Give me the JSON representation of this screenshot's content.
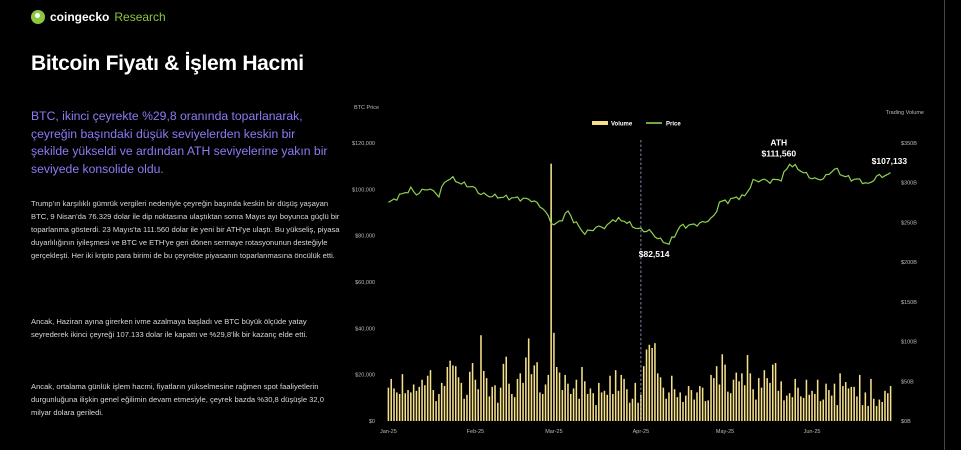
{
  "brand": {
    "name": "coingecko",
    "suffix": "Research"
  },
  "title": "Bitcoin Fiyatı & İşlem Hacmi",
  "lead": "BTC, ikinci çeyrekte %29,8 oranında toparlanarak, çeyreğin başındaki düşük seviyelerden keskin bir şekilde yükseldi ve ardından ATH seviyelerine yakın bir seviyede konsolide oldu.",
  "paragraphs": [
    "Trump'ın karşılıklı gümrük vergileri nedeniyle çeyreğin başında keskin bir düşüş yaşayan BTC, 9 Nisan'da 76.329 dolar ile dip noktasına ulaştıktan sonra Mayıs ayı boyunca güçlü bir toparlanma gösterdi. 23 Mayıs'ta 111.560 dolar ile yeni bir ATH'ye ulaştı. Bu yükseliş, piyasa duyarlılığının iyileşmesi ve BTC ve ETH'ye geri dönen sermaye rotasyonunun desteğiyle gerçekleşti. Her iki kripto para birimi de bu çeyrekte piyasanın toparlanmasına öncülük etti.",
    "Ancak, Haziran ayına girerken ivme azalmaya başladı ve BTC büyük ölçüde yatay seyrederek ikinci çeyreği 107.133 dolar ile kapattı ve %29,8'lik bir kazanç elde etti.",
    "Ancak, ortalama günlük işlem hacmi, fiyatların yükselmesine rağmen spot faaliyetlerin durgunluğuna ilişkin genel eğilimin devam etmesiyle, çeyrek bazda %30,8 düşüşle 32,0 milyar dolara geriledi."
  ],
  "chart_data": {
    "type": "bar+line",
    "left_axis_title": "BTC Price",
    "right_axis_title": "Trading Volume",
    "left_ticks": [
      "$0",
      "$20,000",
      "$40,000",
      "$60,000",
      "$80,000",
      "$100,000",
      "$120,000"
    ],
    "right_ticks": [
      "$0B",
      "$50B",
      "$100B",
      "$150B",
      "$200B",
      "$250B",
      "$300B",
      "$350B"
    ],
    "x_ticks": [
      "Jan-25",
      "Feb-25",
      "Mar-25",
      "Apr-25",
      "May-25",
      "Jun-25"
    ],
    "legend": {
      "volume": "Volume",
      "price": "Price"
    },
    "ylim_price": [
      0,
      130000
    ],
    "ylim_volume": [
      0,
      350
    ],
    "quarter_start_day": 90,
    "annotations": [
      {
        "label": "ATH",
        "value": "$111,560",
        "day": 142,
        "price": 111560
      },
      {
        "label": "",
        "value": "$82,514",
        "day": 94,
        "price": 82514
      },
      {
        "label": "",
        "value": "$107,133",
        "day": 180,
        "price": 107133
      }
    ],
    "price_anchors": [
      [
        0,
        94000
      ],
      [
        5,
        98000
      ],
      [
        8,
        100000
      ],
      [
        10,
        98000
      ],
      [
        14,
        100500
      ],
      [
        18,
        97500
      ],
      [
        20,
        103000
      ],
      [
        22,
        105000
      ],
      [
        26,
        102500
      ],
      [
        30,
        101000
      ],
      [
        33,
        98000
      ],
      [
        37,
        97000
      ],
      [
        42,
        96500
      ],
      [
        47,
        96000
      ],
      [
        51,
        95500
      ],
      [
        55,
        92000
      ],
      [
        57,
        88000
      ],
      [
        59,
        84500
      ],
      [
        61,
        86000
      ],
      [
        64,
        90500
      ],
      [
        66,
        86500
      ],
      [
        70,
        81000
      ],
      [
        74,
        83500
      ],
      [
        78,
        84000
      ],
      [
        80,
        87000
      ],
      [
        84,
        86500
      ],
      [
        88,
        83500
      ],
      [
        90,
        82500
      ],
      [
        93,
        82000
      ],
      [
        97,
        78000
      ],
      [
        100,
        76500
      ],
      [
        104,
        84000
      ],
      [
        108,
        84500
      ],
      [
        112,
        85500
      ],
      [
        116,
        88000
      ],
      [
        118,
        94500
      ],
      [
        121,
        95000
      ],
      [
        124,
        96500
      ],
      [
        127,
        97000
      ],
      [
        130,
        103500
      ],
      [
        133,
        104000
      ],
      [
        136,
        103500
      ],
      [
        140,
        104500
      ],
      [
        143,
        111000
      ],
      [
        146,
        109000
      ],
      [
        150,
        105500
      ],
      [
        153,
        104000
      ],
      [
        156,
        105500
      ],
      [
        159,
        109000
      ],
      [
        162,
        106000
      ],
      [
        165,
        104500
      ],
      [
        168,
        104000
      ],
      [
        171,
        102000
      ],
      [
        174,
        105500
      ],
      [
        177,
        106000
      ],
      [
        181,
        107100
      ]
    ],
    "volume_values": [
      42,
      53,
      41,
      36,
      34,
      59,
      35,
      39,
      36,
      46,
      38,
      43,
      52,
      45,
      57,
      64,
      39,
      25,
      34,
      48,
      44,
      68,
      76,
      70,
      69,
      55,
      48,
      28,
      33,
      62,
      73,
      52,
      40,
      108,
      63,
      54,
      31,
      43,
      45,
      23,
      42,
      72,
      81,
      47,
      34,
      30,
      53,
      60,
      48,
      80,
      104,
      59,
      70,
      74,
      36,
      34,
      46,
      58,
      324,
      111,
      68,
      61,
      39,
      58,
      47,
      34,
      41,
      52,
      28,
      68,
      50,
      34,
      41,
      35,
      20,
      48,
      36,
      38,
      33,
      57,
      34,
      64,
      38,
      58,
      53,
      40,
      23,
      28,
      48,
      23,
      33,
      69,
      90,
      96,
      92,
      98,
      60,
      55,
      42,
      28,
      36,
      57,
      40,
      30,
      36,
      24,
      32,
      44,
      39,
      27,
      36,
      44,
      42,
      25,
      26,
      58,
      54,
      69,
      46,
      84,
      71,
      37,
      35,
      52,
      61,
      50,
      60,
      45,
      83,
      60,
      40,
      27,
      54,
      42,
      64,
      54,
      48,
      71,
      73,
      38,
      50,
      26,
      32,
      35,
      30,
      53,
      42,
      31,
      29,
      52,
      33,
      38,
      34,
      52,
      25,
      27,
      47,
      39,
      32,
      47,
      20,
      60,
      44,
      49,
      41,
      43,
      43,
      31,
      58,
      20,
      36,
      19,
      53,
      28,
      19,
      27,
      24,
      38,
      35,
      44
    ]
  },
  "colors": {
    "price": "#8fd14f",
    "volume": "#f7e08a",
    "lead": "#8b7cf6",
    "brand": "#8dc63f"
  }
}
